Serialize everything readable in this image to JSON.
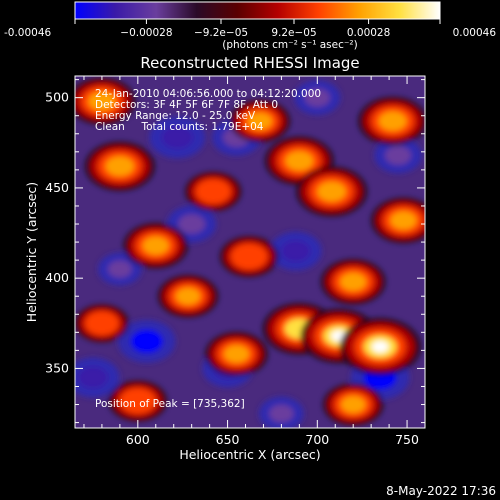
{
  "chart_data": {
    "type": "heatmap",
    "title": "Reconstructed RHESSI Image",
    "xlabel": "Heliocentric X (arcsec)",
    "ylabel": "Heliocentric Y (arcsec)",
    "xlim": [
      565,
      760
    ],
    "ylim": [
      317,
      512
    ],
    "x_ticks": [
      600,
      650,
      700,
      750
    ],
    "y_ticks": [
      350,
      400,
      450,
      500
    ],
    "grid": false,
    "colorbar": {
      "orientation": "horizontal",
      "placement": "top",
      "range": [
        -0.00046,
        0.00046
      ],
      "tick_values": [
        -0.00046,
        -0.00028,
        -9.2e-05,
        9.2e-05,
        0.00028,
        0.00046
      ],
      "tick_labels": [
        "-0.00046",
        "−0.00028",
        "−9.2e−05",
        "9.2e−05",
        "0.00028",
        "0.00046"
      ],
      "units_label": "(photons cm⁻² s⁻¹ asec⁻²)",
      "colormap": [
        "#0000ff",
        "#3a1aa8",
        "#6a3e9e",
        "#2a0a28",
        "#5a0000",
        "#b40000",
        "#ff4000",
        "#ffa000",
        "#ffe040",
        "#ffffff"
      ]
    },
    "annotations": [
      "24-Jan-2010 04:06:56.000 to 04:12:20.000",
      "Detectors: 3F 4F 5F 6F 7F 8F, Att 0",
      "Energy Range: 12.0 - 25.0 keV",
      "Clean     Total counts: 1.79E+04",
      "Position of Peak = [735,362]"
    ],
    "peak": {
      "x": 735,
      "y": 362
    },
    "bright_sources": [
      {
        "x": 580,
        "y": 498,
        "intensity": 0.00032
      },
      {
        "x": 590,
        "y": 462,
        "intensity": 0.00035
      },
      {
        "x": 610,
        "y": 418,
        "intensity": 0.0003
      },
      {
        "x": 628,
        "y": 390,
        "intensity": 0.00026
      },
      {
        "x": 662,
        "y": 412,
        "intensity": 0.00024
      },
      {
        "x": 655,
        "y": 358,
        "intensity": 0.00028
      },
      {
        "x": 690,
        "y": 372,
        "intensity": 0.00038
      },
      {
        "x": 712,
        "y": 368,
        "intensity": 0.00042
      },
      {
        "x": 735,
        "y": 362,
        "intensity": 0.00046
      },
      {
        "x": 720,
        "y": 398,
        "intensity": 0.0003
      },
      {
        "x": 690,
        "y": 465,
        "intensity": 0.00034
      },
      {
        "x": 708,
        "y": 448,
        "intensity": 0.00036
      },
      {
        "x": 668,
        "y": 487,
        "intensity": 0.00026
      },
      {
        "x": 742,
        "y": 487,
        "intensity": 0.00034
      },
      {
        "x": 748,
        "y": 432,
        "intensity": 0.0003
      },
      {
        "x": 720,
        "y": 330,
        "intensity": 0.00026
      },
      {
        "x": 600,
        "y": 332,
        "intensity": 0.00024
      },
      {
        "x": 642,
        "y": 448,
        "intensity": 0.00022
      },
      {
        "x": 580,
        "y": 375,
        "intensity": 0.0002
      }
    ],
    "dim_sources": [
      {
        "x": 622,
        "y": 478,
        "intensity": -0.0004
      },
      {
        "x": 605,
        "y": 365,
        "intensity": -0.00042
      },
      {
        "x": 575,
        "y": 345,
        "intensity": -0.00036
      },
      {
        "x": 655,
        "y": 478,
        "intensity": -0.0003
      },
      {
        "x": 650,
        "y": 350,
        "intensity": -0.00032
      },
      {
        "x": 735,
        "y": 345,
        "intensity": -0.00044
      },
      {
        "x": 688,
        "y": 415,
        "intensity": -0.00034
      },
      {
        "x": 630,
        "y": 430,
        "intensity": -0.0003
      },
      {
        "x": 745,
        "y": 468,
        "intensity": -0.00028
      },
      {
        "x": 700,
        "y": 500,
        "intensity": -0.00026
      },
      {
        "x": 680,
        "y": 325,
        "intensity": -0.00024
      },
      {
        "x": 590,
        "y": 405,
        "intensity": -0.00022
      }
    ]
  },
  "footer": {
    "timestamp": "8-May-2022 17:36"
  }
}
